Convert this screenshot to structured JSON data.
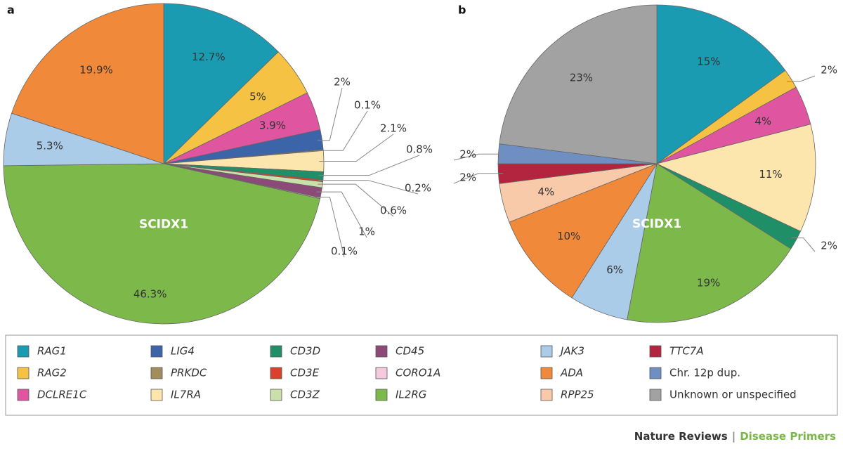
{
  "chart_data": [
    {
      "type": "pie",
      "panel": "a",
      "annotation": "SCIDX1",
      "categories": [
        "RAG1",
        "RAG2",
        "DCLRE1C",
        "LIG4",
        "PRKDC",
        "IL7RA",
        "CD3D",
        "CD3E",
        "CD3Z",
        "CD45",
        "CORO1A",
        "IL2RG",
        "JAK3",
        "ADA"
      ],
      "values": [
        12.7,
        5,
        3.9,
        2,
        0.1,
        2.1,
        0.8,
        0.2,
        0.6,
        1,
        0.1,
        46.3,
        5.3,
        19.9
      ],
      "value_labels": [
        "12.7%",
        "5%",
        "3.9%",
        "2%",
        "0.1%",
        "2.1%",
        "0.8%",
        "0.2%",
        "0.6%",
        "1%",
        "0.1%",
        "46.3%",
        "5.3%",
        "19.9%"
      ],
      "annotated_category": "IL2RG"
    },
    {
      "type": "pie",
      "panel": "b",
      "annotation": "SCIDX1",
      "categories": [
        "RAG1",
        "RAG2",
        "DCLRE1C",
        "IL7RA",
        "CD3D",
        "IL2RG",
        "JAK3",
        "ADA",
        "RPP25",
        "TTC7A",
        "Chr. 12p dup.",
        "Unknown or unspecified"
      ],
      "values": [
        15,
        2,
        4,
        11,
        2,
        19,
        6,
        10,
        4,
        2,
        2,
        23
      ],
      "value_labels": [
        "15%",
        "2%",
        "4%",
        "11%",
        "2%",
        "19%",
        "6%",
        "10%",
        "4%",
        "2%",
        "2%",
        "23%"
      ],
      "annotated_category": "IL2RG"
    }
  ],
  "legend": [
    {
      "name": "RAG1",
      "color": "#1b9bb2",
      "italic": true
    },
    {
      "name": "RAG2",
      "color": "#f6c244",
      "italic": true
    },
    {
      "name": "DCLRE1C",
      "color": "#df559f",
      "italic": true
    },
    {
      "name": "LIG4",
      "color": "#3c64a8",
      "italic": true
    },
    {
      "name": "PRKDC",
      "color": "#a38d5c",
      "italic": true
    },
    {
      "name": "IL7RA",
      "color": "#fde6ae",
      "italic": true
    },
    {
      "name": "CD3D",
      "color": "#1f8f68",
      "italic": true
    },
    {
      "name": "CD3E",
      "color": "#d9412b",
      "italic": true
    },
    {
      "name": "CD3Z",
      "color": "#c9e1a9",
      "italic": true
    },
    {
      "name": "CD45",
      "color": "#8b4a78",
      "italic": true
    },
    {
      "name": "CORO1A",
      "color": "#f5c9df",
      "italic": true
    },
    {
      "name": "IL2RG",
      "color": "#7cb84a",
      "italic": true
    },
    {
      "name": "JAK3",
      "color": "#abcce9",
      "italic": true
    },
    {
      "name": "ADA",
      "color": "#f08a3a",
      "italic": true
    },
    {
      "name": "RPP25",
      "color": "#f8caa9",
      "italic": true
    },
    {
      "name": "TTC7A",
      "color": "#b3253e",
      "italic": true
    },
    {
      "name": "Chr. 12p dup.",
      "color": "#6f8fc2",
      "italic": false
    },
    {
      "name": "Unknown or unspecified",
      "color": "#a2a2a2",
      "italic": false
    }
  ],
  "footer": {
    "publisher": "Nature Reviews",
    "separator": "|",
    "series": "Disease Primers"
  }
}
